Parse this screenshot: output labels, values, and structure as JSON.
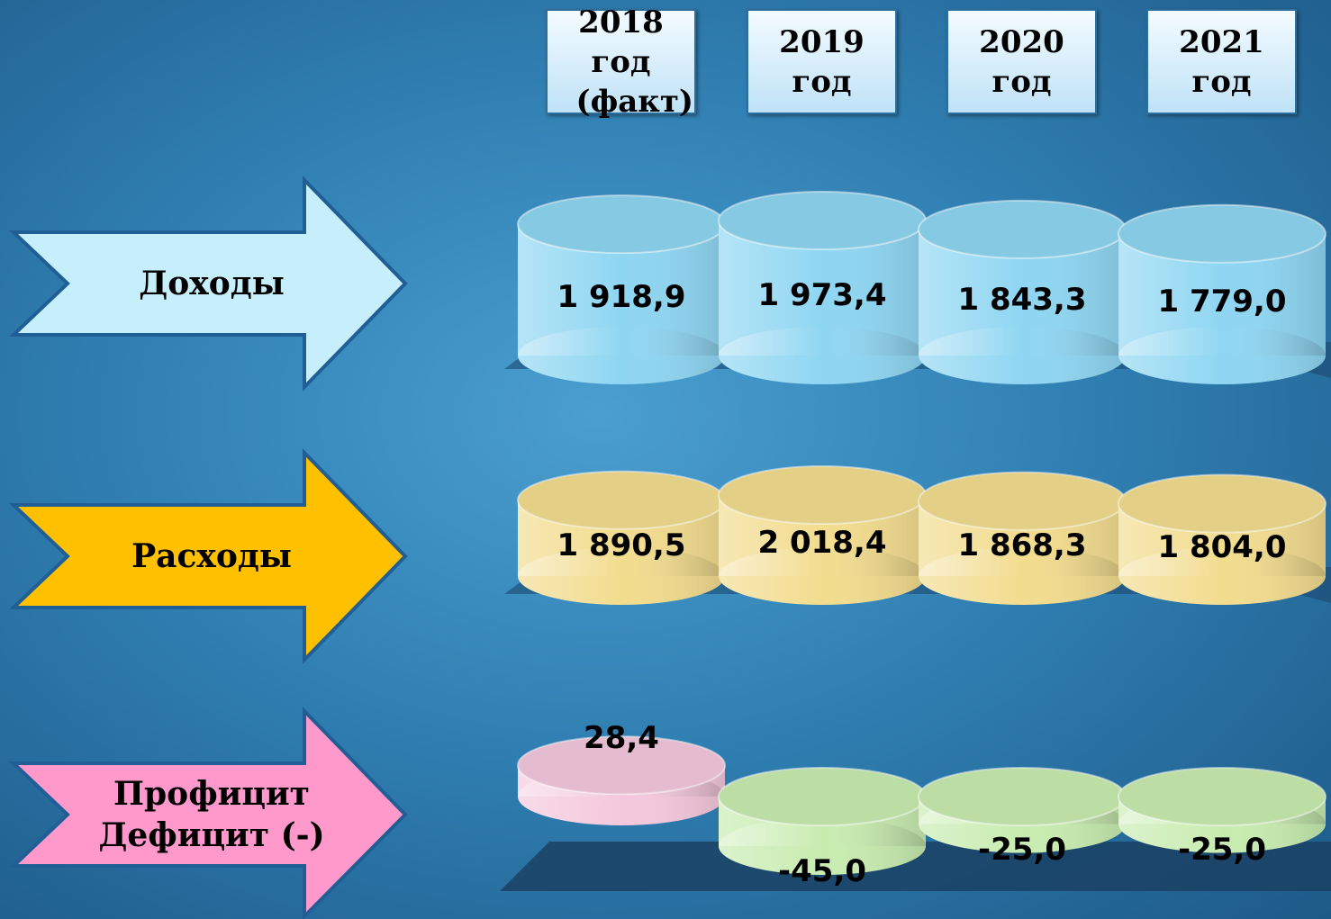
{
  "chart_data": {
    "type": "cylinder",
    "categories": [
      "2018 год (факт)",
      "2019 год",
      "2020 год",
      "2021 год"
    ],
    "series": [
      {
        "name": "Доходы",
        "color": "#8fd6f2",
        "arrow_color": "#c6eefb",
        "values": [
          1918.9,
          1973.4,
          1843.3,
          1779.0
        ],
        "value_labels": [
          "1 918,9",
          "1 973,4",
          "1 843,3",
          "1 779,0"
        ]
      },
      {
        "name": "Расходы",
        "color": "#f2dc8e",
        "arrow_color": "#ffc000",
        "values": [
          1890.5,
          2018.4,
          1868.3,
          1804.0
        ],
        "value_labels": [
          "1 890,5",
          "2 018,4",
          "1 868,3",
          "1 804,0"
        ]
      },
      {
        "name": "Профицит Дефицит (-)",
        "color": "#f4c8dc",
        "negative_color": "#c8ecb0",
        "arrow_color": "#ff99cc",
        "values": [
          28.4,
          -45.0,
          -25.0,
          -25.0
        ],
        "value_labels": [
          "28,4",
          "-45,0",
          "-25,0",
          "-25,0"
        ]
      }
    ]
  }
}
